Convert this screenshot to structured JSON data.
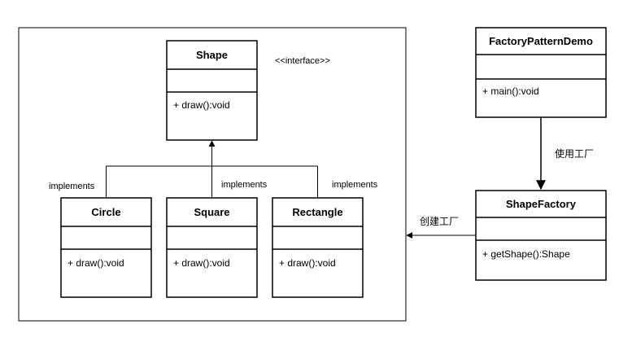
{
  "interface_stereotype": "<<interface>>",
  "classes": {
    "shape": {
      "name": "Shape",
      "method": "+ draw():void"
    },
    "circle": {
      "name": "Circle",
      "method": "+ draw():void"
    },
    "square": {
      "name": "Square",
      "method": "+ draw():void"
    },
    "rectangle": {
      "name": "Rectangle",
      "method": "+ draw():void"
    },
    "demo": {
      "name": "FactoryPatternDemo",
      "method": "+ main():void"
    },
    "factory": {
      "name": "ShapeFactory",
      "method": "+ getShape():Shape"
    }
  },
  "relations": {
    "implements_circle": "implements",
    "implements_square": "implements",
    "implements_rectangle": "implements",
    "uses_factory": "使用工厂",
    "creates": "创建工厂"
  }
}
